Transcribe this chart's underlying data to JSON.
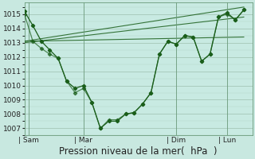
{
  "bg_color": "#c8e8e0",
  "plot_bg": "#c8eae2",
  "line_color": "#1a5e1a",
  "grid_color": "#99bbaa",
  "vline_color": "#6a9a7a",
  "ylim": [
    1006.5,
    1015.8
  ],
  "xlim": [
    0,
    27
  ],
  "xlabel": "Pression niveau de la mer(  hPa  )",
  "xlabel_fontsize": 8.5,
  "tick_fontsize": 6.5,
  "xtick_labels": [
    "| Sam",
    "| Mar",
    "| Dim",
    "| Lun"
  ],
  "xtick_positions": [
    0.5,
    7,
    18,
    24
  ],
  "ytick_positions": [
    1007,
    1008,
    1009,
    1010,
    1011,
    1012,
    1013,
    1014,
    1015
  ],
  "main_line1": [
    1015.2,
    1014.2,
    1013.1,
    1012.5,
    1011.9,
    1010.3,
    1009.8,
    1010.0,
    1008.8,
    1007.0,
    1007.5,
    1007.5,
    1008.0,
    1008.1,
    1008.7,
    1009.5,
    1012.2,
    1013.1,
    1012.9,
    1013.5,
    1013.4,
    1011.7,
    1012.2,
    1014.8,
    1015.1,
    1014.6,
    1015.3
  ],
  "main_line2": [
    1015.0,
    1013.1,
    1012.6,
    1012.2,
    1011.9,
    1010.3,
    1009.5,
    1009.8,
    1008.8,
    1007.0,
    1007.6,
    1007.6,
    1008.0,
    1008.1,
    1008.7,
    1009.5,
    1012.2,
    1013.1,
    1012.9,
    1013.5,
    1013.4,
    1011.7,
    1012.2,
    1014.8,
    1015.0,
    1014.6,
    1015.3
  ],
  "trend_lines": [
    {
      "x": [
        0,
        26
      ],
      "y": [
        1013.1,
        1013.4
      ]
    },
    {
      "x": [
        0,
        26
      ],
      "y": [
        1013.0,
        1014.8
      ]
    },
    {
      "x": [
        0,
        26
      ],
      "y": [
        1013.1,
        1015.5
      ]
    }
  ],
  "vline_positions": [
    0.5,
    7,
    18,
    24
  ],
  "marker_size": 2.2,
  "linewidth": 0.9
}
